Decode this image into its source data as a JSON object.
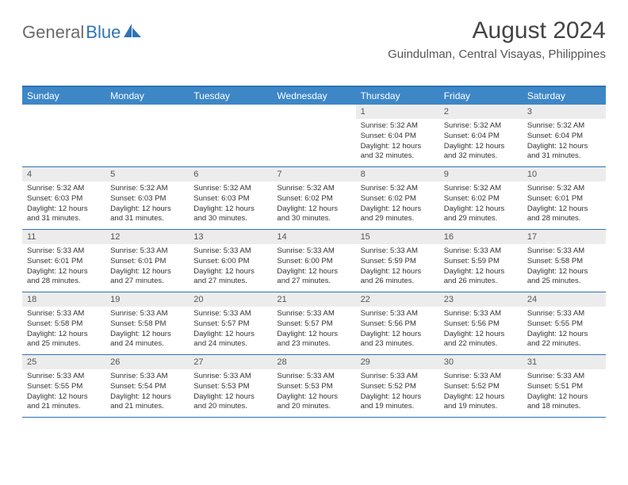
{
  "logo": {
    "gray": "General",
    "blue": "Blue"
  },
  "colors": {
    "accent": "#2e74b5",
    "header_bg": "#3d87c7",
    "header_text": "#ffffff",
    "daynum_bg": "#ececec",
    "text": "#333333"
  },
  "title": "August 2024",
  "subtitle": "Guindulman, Central Visayas, Philippines",
  "day_names": [
    "Sunday",
    "Monday",
    "Tuesday",
    "Wednesday",
    "Thursday",
    "Friday",
    "Saturday"
  ],
  "weeks": [
    [
      null,
      null,
      null,
      null,
      {
        "n": "1",
        "sr": "5:32 AM",
        "ss": "6:04 PM",
        "dl": "12 hours and 32 minutes."
      },
      {
        "n": "2",
        "sr": "5:32 AM",
        "ss": "6:04 PM",
        "dl": "12 hours and 32 minutes."
      },
      {
        "n": "3",
        "sr": "5:32 AM",
        "ss": "6:04 PM",
        "dl": "12 hours and 31 minutes."
      }
    ],
    [
      {
        "n": "4",
        "sr": "5:32 AM",
        "ss": "6:03 PM",
        "dl": "12 hours and 31 minutes."
      },
      {
        "n": "5",
        "sr": "5:32 AM",
        "ss": "6:03 PM",
        "dl": "12 hours and 31 minutes."
      },
      {
        "n": "6",
        "sr": "5:32 AM",
        "ss": "6:03 PM",
        "dl": "12 hours and 30 minutes."
      },
      {
        "n": "7",
        "sr": "5:32 AM",
        "ss": "6:02 PM",
        "dl": "12 hours and 30 minutes."
      },
      {
        "n": "8",
        "sr": "5:32 AM",
        "ss": "6:02 PM",
        "dl": "12 hours and 29 minutes."
      },
      {
        "n": "9",
        "sr": "5:32 AM",
        "ss": "6:02 PM",
        "dl": "12 hours and 29 minutes."
      },
      {
        "n": "10",
        "sr": "5:32 AM",
        "ss": "6:01 PM",
        "dl": "12 hours and 28 minutes."
      }
    ],
    [
      {
        "n": "11",
        "sr": "5:33 AM",
        "ss": "6:01 PM",
        "dl": "12 hours and 28 minutes."
      },
      {
        "n": "12",
        "sr": "5:33 AM",
        "ss": "6:01 PM",
        "dl": "12 hours and 27 minutes."
      },
      {
        "n": "13",
        "sr": "5:33 AM",
        "ss": "6:00 PM",
        "dl": "12 hours and 27 minutes."
      },
      {
        "n": "14",
        "sr": "5:33 AM",
        "ss": "6:00 PM",
        "dl": "12 hours and 27 minutes."
      },
      {
        "n": "15",
        "sr": "5:33 AM",
        "ss": "5:59 PM",
        "dl": "12 hours and 26 minutes."
      },
      {
        "n": "16",
        "sr": "5:33 AM",
        "ss": "5:59 PM",
        "dl": "12 hours and 26 minutes."
      },
      {
        "n": "17",
        "sr": "5:33 AM",
        "ss": "5:58 PM",
        "dl": "12 hours and 25 minutes."
      }
    ],
    [
      {
        "n": "18",
        "sr": "5:33 AM",
        "ss": "5:58 PM",
        "dl": "12 hours and 25 minutes."
      },
      {
        "n": "19",
        "sr": "5:33 AM",
        "ss": "5:58 PM",
        "dl": "12 hours and 24 minutes."
      },
      {
        "n": "20",
        "sr": "5:33 AM",
        "ss": "5:57 PM",
        "dl": "12 hours and 24 minutes."
      },
      {
        "n": "21",
        "sr": "5:33 AM",
        "ss": "5:57 PM",
        "dl": "12 hours and 23 minutes."
      },
      {
        "n": "22",
        "sr": "5:33 AM",
        "ss": "5:56 PM",
        "dl": "12 hours and 23 minutes."
      },
      {
        "n": "23",
        "sr": "5:33 AM",
        "ss": "5:56 PM",
        "dl": "12 hours and 22 minutes."
      },
      {
        "n": "24",
        "sr": "5:33 AM",
        "ss": "5:55 PM",
        "dl": "12 hours and 22 minutes."
      }
    ],
    [
      {
        "n": "25",
        "sr": "5:33 AM",
        "ss": "5:55 PM",
        "dl": "12 hours and 21 minutes."
      },
      {
        "n": "26",
        "sr": "5:33 AM",
        "ss": "5:54 PM",
        "dl": "12 hours and 21 minutes."
      },
      {
        "n": "27",
        "sr": "5:33 AM",
        "ss": "5:53 PM",
        "dl": "12 hours and 20 minutes."
      },
      {
        "n": "28",
        "sr": "5:33 AM",
        "ss": "5:53 PM",
        "dl": "12 hours and 20 minutes."
      },
      {
        "n": "29",
        "sr": "5:33 AM",
        "ss": "5:52 PM",
        "dl": "12 hours and 19 minutes."
      },
      {
        "n": "30",
        "sr": "5:33 AM",
        "ss": "5:52 PM",
        "dl": "12 hours and 19 minutes."
      },
      {
        "n": "31",
        "sr": "5:33 AM",
        "ss": "5:51 PM",
        "dl": "12 hours and 18 minutes."
      }
    ]
  ],
  "labels": {
    "sunrise": "Sunrise: ",
    "sunset": "Sunset: ",
    "daylight": "Daylight: "
  }
}
